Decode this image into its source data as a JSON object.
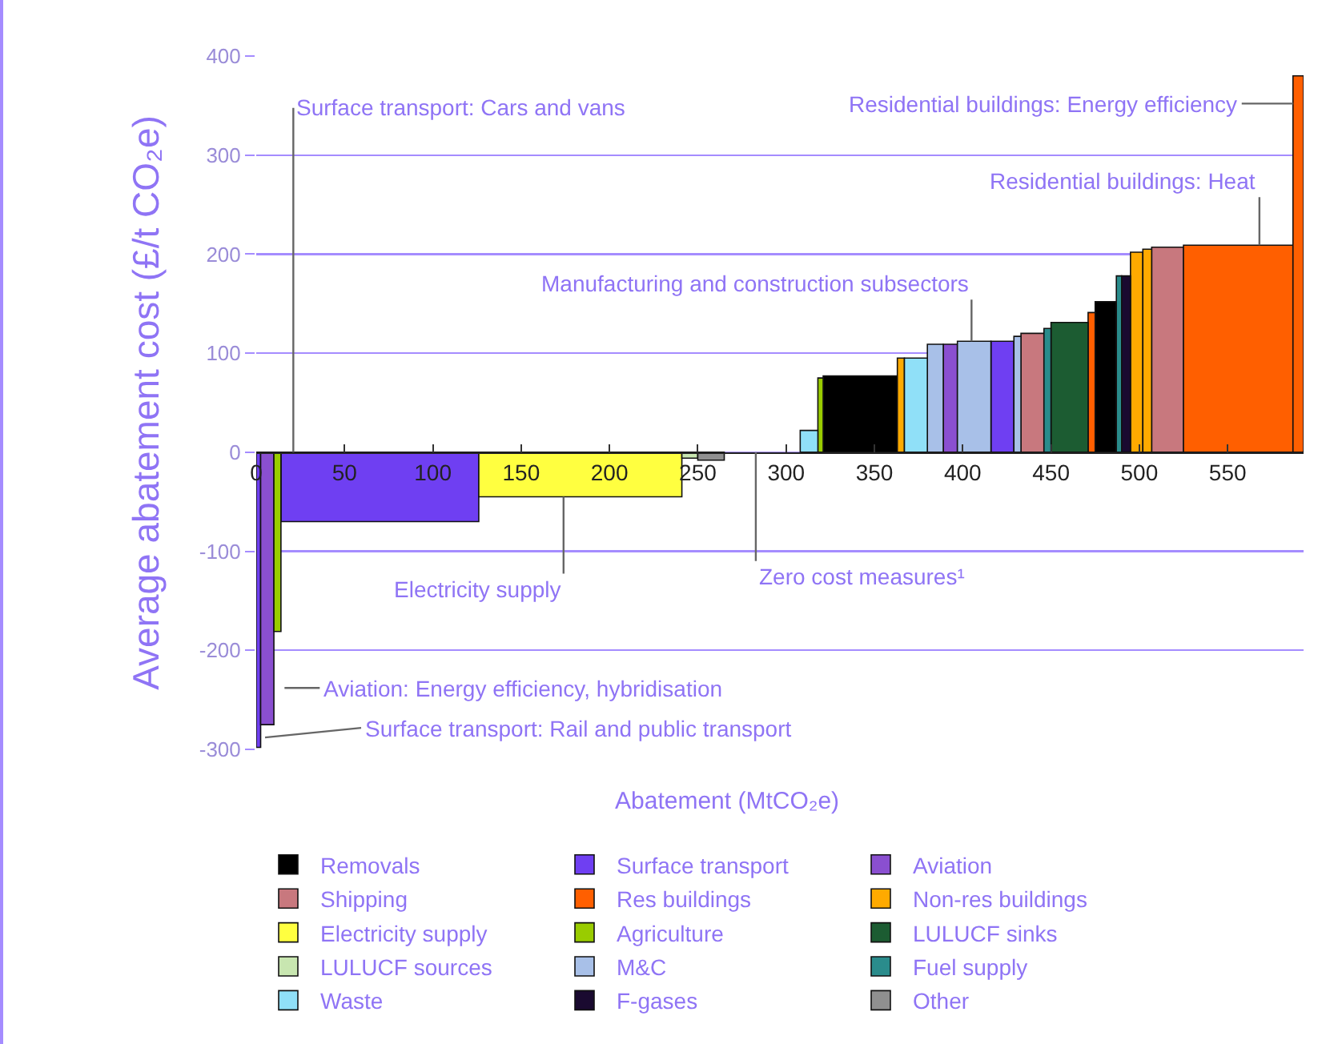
{
  "chart_data": {
    "type": "histogram",
    "ylabel": "Average abatement cost (£/t CO₂e)",
    "xlabel": "Abatement (MtCO₂e)",
    "bins": [
      0,
      2.5,
      10,
      14,
      126,
      241,
      250,
      265,
      308,
      318,
      321,
      363,
      367,
      380,
      389,
      397,
      416,
      429,
      433,
      446,
      450,
      471,
      475,
      487,
      490,
      495,
      502,
      507,
      525,
      587,
      593
    ],
    "xlim": [
      0,
      593
    ],
    "xticks": [
      0,
      50,
      100,
      150,
      200,
      250,
      300,
      350,
      400,
      450,
      500,
      550
    ],
    "ylim": [
      -300,
      400
    ],
    "yticks": [
      -300,
      -200,
      -100,
      0,
      100,
      200,
      300,
      400
    ],
    "grid": "y",
    "legend": "bottom",
    "series": [
      {
        "name": "Removals",
        "color": "#000000",
        "values": [
          null,
          null,
          null,
          null,
          null,
          null,
          null,
          null,
          null,
          null,
          77,
          null,
          null,
          null,
          null,
          null,
          null,
          null,
          null,
          null,
          null,
          null,
          152,
          null,
          null,
          null,
          null,
          null,
          null,
          null
        ]
      },
      {
        "name": "Surface transport",
        "color": "#6f3ff2",
        "values": [
          -298,
          null,
          null,
          -70,
          null,
          null,
          null,
          null,
          null,
          null,
          null,
          null,
          null,
          null,
          null,
          null,
          112,
          null,
          null,
          null,
          null,
          null,
          null,
          null,
          null,
          null,
          null,
          null,
          null,
          null
        ]
      },
      {
        "name": "Aviation",
        "color": "#8a4fd0",
        "values": [
          null,
          -275,
          null,
          null,
          null,
          null,
          null,
          null,
          null,
          null,
          null,
          null,
          null,
          null,
          109,
          null,
          null,
          null,
          null,
          null,
          null,
          null,
          null,
          null,
          null,
          null,
          null,
          null,
          null,
          null
        ]
      },
      {
        "name": "Shipping",
        "color": "#c8787e",
        "values": [
          null,
          null,
          null,
          null,
          null,
          null,
          null,
          null,
          null,
          null,
          null,
          null,
          null,
          null,
          null,
          null,
          null,
          null,
          120,
          null,
          null,
          null,
          null,
          null,
          null,
          null,
          null,
          207,
          null,
          null
        ]
      },
      {
        "name": "Res buildings",
        "color": "#ff5f00",
        "values": [
          null,
          null,
          null,
          null,
          null,
          null,
          null,
          null,
          null,
          null,
          null,
          null,
          null,
          null,
          null,
          null,
          null,
          null,
          null,
          null,
          null,
          141,
          null,
          null,
          null,
          null,
          null,
          null,
          209,
          380
        ]
      },
      {
        "name": "Non-res buildings",
        "color": "#ffaa00",
        "values": [
          null,
          null,
          null,
          null,
          null,
          null,
          null,
          null,
          null,
          null,
          null,
          95,
          null,
          null,
          null,
          null,
          null,
          null,
          null,
          null,
          null,
          null,
          null,
          null,
          null,
          202,
          205,
          null,
          null,
          null
        ]
      },
      {
        "name": "Electricity supply",
        "color": "#ffff40",
        "values": [
          null,
          null,
          null,
          null,
          -45,
          null,
          null,
          null,
          null,
          null,
          null,
          null,
          null,
          null,
          null,
          null,
          null,
          null,
          null,
          null,
          null,
          null,
          null,
          null,
          null,
          null,
          null,
          null,
          null,
          null
        ]
      },
      {
        "name": "Agriculture",
        "color": "#99cc00",
        "values": [
          null,
          null,
          -181,
          null,
          null,
          null,
          null,
          null,
          null,
          75,
          null,
          null,
          null,
          null,
          null,
          null,
          null,
          null,
          null,
          null,
          null,
          null,
          null,
          null,
          null,
          null,
          null,
          null,
          null,
          null
        ]
      },
      {
        "name": "LULUCF sinks",
        "color": "#1c5c32",
        "values": [
          null,
          null,
          null,
          null,
          null,
          null,
          null,
          null,
          null,
          null,
          null,
          null,
          null,
          null,
          null,
          null,
          null,
          null,
          null,
          null,
          131,
          null,
          null,
          null,
          null,
          null,
          null,
          null,
          null,
          null
        ]
      },
      {
        "name": "LULUCF sources",
        "color": "#c8e6b0",
        "values": [
          null,
          null,
          null,
          null,
          null,
          -6,
          null,
          null,
          null,
          null,
          null,
          null,
          null,
          null,
          null,
          null,
          null,
          null,
          null,
          null,
          null,
          null,
          null,
          null,
          null,
          null,
          null,
          null,
          null,
          null
        ]
      },
      {
        "name": "M&C",
        "color": "#a8c0e8",
        "values": [
          null,
          null,
          null,
          null,
          null,
          null,
          null,
          null,
          null,
          null,
          null,
          null,
          null,
          109,
          null,
          112,
          null,
          117,
          null,
          null,
          null,
          null,
          null,
          null,
          null,
          null,
          null,
          null,
          null,
          null
        ]
      },
      {
        "name": "Fuel supply",
        "color": "#2a8c8c",
        "values": [
          null,
          null,
          null,
          null,
          null,
          null,
          null,
          null,
          null,
          null,
          null,
          null,
          null,
          null,
          null,
          null,
          null,
          null,
          null,
          125,
          null,
          null,
          null,
          178,
          null,
          null,
          null,
          null,
          null,
          null
        ]
      },
      {
        "name": "Waste",
        "color": "#90e0f8",
        "values": [
          null,
          null,
          null,
          null,
          null,
          null,
          null,
          null,
          22,
          null,
          null,
          null,
          95,
          null,
          null,
          null,
          null,
          null,
          null,
          null,
          null,
          null,
          null,
          null,
          null,
          null,
          null,
          null,
          null,
          null
        ]
      },
      {
        "name": "F-gases",
        "color": "#1a0a30",
        "values": [
          null,
          null,
          null,
          null,
          null,
          null,
          null,
          null,
          null,
          null,
          null,
          null,
          null,
          null,
          null,
          null,
          null,
          null,
          null,
          null,
          null,
          null,
          null,
          null,
          178,
          null,
          null,
          null,
          null,
          null
        ]
      },
      {
        "name": "Other",
        "color": "#909090",
        "values": [
          null,
          null,
          null,
          null,
          null,
          null,
          -8,
          null,
          null,
          null,
          null,
          null,
          null,
          null,
          null,
          null,
          null,
          null,
          null,
          null,
          null,
          null,
          null,
          null,
          null,
          null,
          null,
          null,
          null,
          null
        ]
      }
    ],
    "annotations": [
      {
        "text": "Surface transport: Cars and vans",
        "x": 21,
        "y": 0
      },
      {
        "text": "Residential buildings: Energy efficiency",
        "x": 587,
        "y": 352
      },
      {
        "text": "Residential buildings: Heat",
        "x": 568,
        "y": 209
      },
      {
        "text": "Manufacturing and construction subsectors",
        "x": 405,
        "y": 112
      },
      {
        "text": "Electricity supply",
        "x": 174,
        "y": -45
      },
      "Zero cost measures¹",
      "Aviation: Energy efficiency, hybridisation",
      {
        "text": "Surface transport: Rail and public transport",
        "x": 5,
        "y": -288
      }
    ]
  }
}
